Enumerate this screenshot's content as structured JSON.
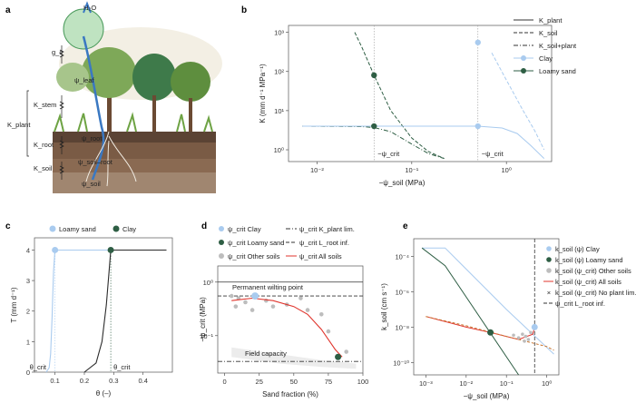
{
  "panels": {
    "a": {
      "letter": "a",
      "labels": {
        "h2o": "H₂O",
        "gc": "g_c",
        "kstem": "K_stem",
        "kplant": "K_plant",
        "kroot": "K_root",
        "ksoil": "K_soil",
        "psi_leaf": "ψ_leaf",
        "psi_root": "ψ_root",
        "psi_soil_root": "ψ_soil–root",
        "psi_soil": "ψ_soil"
      }
    }
  },
  "chart_data": [
    {
      "panel": "b",
      "type": "line",
      "xlabel": "−ψ_soil (MPa)",
      "ylabel": "K (mm d⁻¹ MPa⁻¹)",
      "xscale": "log",
      "yscale": "log",
      "xlim": [
        0.005,
        3
      ],
      "ylim": [
        0.5,
        1500
      ],
      "xticks": [
        "10⁻²",
        "10⁻¹",
        "10⁰"
      ],
      "yticks": [
        "10⁰",
        "10¹",
        "10²",
        "10³"
      ],
      "legend": [
        "K_plant",
        "K_soil",
        "K_soil+plant",
        "Clay",
        "Loamy sand"
      ],
      "colors": {
        "clay": "#a9cbef",
        "loamy_sand": "#2e5e44"
      },
      "series": [
        {
          "name": "K_plant",
          "style": "solid",
          "x": [
            0.007,
            0.5
          ],
          "y": [
            4,
            4
          ]
        },
        {
          "name": "K_soil",
          "soil": "Loamy sand",
          "style": "dashed",
          "x": [
            0.025,
            0.03,
            0.04,
            0.06,
            0.1,
            0.15,
            0.22
          ],
          "y": [
            1000,
            400,
            80,
            10,
            2,
            0.9,
            0.6
          ]
        },
        {
          "name": "K_soil+plant",
          "soil": "Loamy sand",
          "style": "dashdot",
          "x": [
            0.007,
            0.03,
            0.04,
            0.06,
            0.1,
            0.15,
            0.22
          ],
          "y": [
            4,
            3.9,
            3.7,
            2.9,
            1.4,
            0.8,
            0.6
          ]
        },
        {
          "name": "K_soil",
          "soil": "Clay",
          "style": "dashed",
          "x": [
            0.7,
            1.0,
            1.5,
            2.0,
            2.5
          ],
          "y": [
            300,
            60,
            10,
            3,
            1
          ]
        },
        {
          "name": "K_soil+plant",
          "soil": "Clay",
          "style": "solid",
          "x": [
            0.007,
            0.5,
            0.9,
            1.3,
            1.8,
            2.5
          ],
          "y": [
            4,
            4,
            3.6,
            2.6,
            1.3,
            0.6
          ]
        }
      ],
      "markers": [
        {
          "soil": "Clay",
          "x": 0.5,
          "y": 550
        },
        {
          "soil": "Clay",
          "x": 0.5,
          "y": 4
        },
        {
          "soil": "Loamy sand",
          "x": 0.04,
          "y": 80
        },
        {
          "soil": "Loamy sand",
          "x": 0.04,
          "y": 4
        }
      ],
      "vlines": [
        0.04,
        0.5
      ],
      "annotations": [
        "−ψ_crit",
        "−ψ_crit"
      ]
    },
    {
      "panel": "c",
      "type": "line",
      "xlabel": "θ (–)",
      "ylabel": "T (mm d⁻¹)",
      "xlim": [
        0.03,
        0.5
      ],
      "ylim": [
        0,
        4.4
      ],
      "xticks": [
        0.1,
        0.2,
        0.3,
        0.4
      ],
      "yticks": [
        0,
        1,
        2,
        3,
        4
      ],
      "legend": [
        "Loamy sand",
        "Clay"
      ],
      "series": [
        {
          "name": "Loamy sand",
          "x": [
            0.07,
            0.08,
            0.085,
            0.09,
            0.095,
            0.1,
            0.3
          ],
          "y": [
            0,
            0.15,
            0.6,
            1.8,
            3.3,
            4,
            4
          ]
        },
        {
          "name": "Clay",
          "x": [
            0.2,
            0.24,
            0.26,
            0.275,
            0.285,
            0.29,
            0.48
          ],
          "y": [
            0,
            0.3,
            1.0,
            2.2,
            3.4,
            4,
            4
          ]
        }
      ],
      "markers": [
        {
          "name": "Loamy sand",
          "x": 0.1,
          "y": 4
        },
        {
          "name": "Clay",
          "x": 0.29,
          "y": 4
        }
      ],
      "annotations": [
        "θ_crit",
        "θ_crit"
      ]
    },
    {
      "panel": "d",
      "type": "scatter",
      "xlabel": "Sand fraction (%)",
      "ylabel": "−ψ_crit (MPa)",
      "yscale": "log",
      "xlim": [
        -5,
        100
      ],
      "ylim": [
        0.02,
        2
      ],
      "xticks": [
        0,
        25,
        50,
        75,
        100
      ],
      "yticks": [
        "10⁻¹",
        "10⁰"
      ],
      "legend": [
        "ψ_crit Clay",
        "ψ_crit Loamy sand",
        "ψ_crit Other soils",
        "ψ_crit K_plant lim.",
        "ψ_crit L_root inf.",
        "ψ_crit All soils"
      ],
      "clay": {
        "x": 22,
        "y": 0.55
      },
      "loamy_sand": {
        "x": 82,
        "y": 0.04
      },
      "other_soils": {
        "x": [
          5,
          8,
          10,
          15,
          20,
          30,
          35,
          45,
          55,
          60,
          70,
          75,
          88
        ],
        "y": [
          0.55,
          0.35,
          0.5,
          0.42,
          0.3,
          0.45,
          0.35,
          0.38,
          0.5,
          0.3,
          0.25,
          0.12,
          0.05
        ]
      },
      "fit": {
        "x": [
          5,
          20,
          35,
          50,
          60,
          70,
          80,
          85
        ],
        "y": [
          0.45,
          0.5,
          0.45,
          0.35,
          0.25,
          0.13,
          0.055,
          0.04
        ]
      },
      "hlines": [
        {
          "y": 1.0,
          "label": "Permanent wilting point"
        },
        {
          "y": 0.55,
          "style": "dashed"
        },
        {
          "y": 0.033,
          "label": "Field capacity",
          "style": "dashdot"
        }
      ]
    },
    {
      "panel": "e",
      "type": "line",
      "xlabel": "−ψ_soil (MPa)",
      "ylabel": "k_soil (cm s⁻¹)",
      "xscale": "log",
      "yscale": "log",
      "xlim": [
        0.0005,
        2
      ],
      "ylim": [
        2e-11,
        0.001
      ],
      "xticks": [
        "10⁻³",
        "10⁻²",
        "10⁻¹",
        "10⁰"
      ],
      "yticks": [
        "10⁻¹⁰",
        "10⁻⁸",
        "10⁻⁶",
        "10⁻⁴"
      ],
      "legend": [
        "k_soil (ψ) Clay",
        "k_soil (ψ) Loamy sand",
        "k_soil (ψ_crit) Other soils",
        "k_soil (ψ_crit) All soils",
        "k_soil (ψ_crit) No plant lim.",
        "ψ_crit L_root inf."
      ],
      "series": [
        {
          "name": "k_soil (ψ) Clay",
          "x": [
            0.0008,
            0.003,
            0.1,
            1.5
          ],
          "y": [
            0.0003,
            0.0003,
            1e-07,
            3e-10
          ]
        },
        {
          "name": "k_soil (ψ) Loamy sand",
          "x": [
            0.0008,
            0.003,
            0.2
          ],
          "y": [
            0.0003,
            3e-05,
            2e-11
          ]
        },
        {
          "name": "k_soil (ψ_crit) All soils",
          "x": [
            0.001,
            0.01,
            0.04,
            0.2,
            0.45,
            0.5
          ],
          "y": [
            4e-08,
            1e-08,
            5e-09,
            2e-09,
            4e-09,
            1e-08
          ]
        },
        {
          "name": "k_soil (ψ_crit) No plant lim.",
          "x": [
            0.001,
            0.01,
            0.1,
            1.0,
            1.5
          ],
          "y": [
            4e-08,
            1.2e-08,
            3e-09,
            8e-10,
            5e-10
          ]
        }
      ],
      "markers": [
        {
          "name": "Clay",
          "x": 0.5,
          "y": 1e-08
        },
        {
          "name": "Loamy sand",
          "x": 0.04,
          "y": 5e-09
        }
      ],
      "vline": 0.5
    }
  ]
}
